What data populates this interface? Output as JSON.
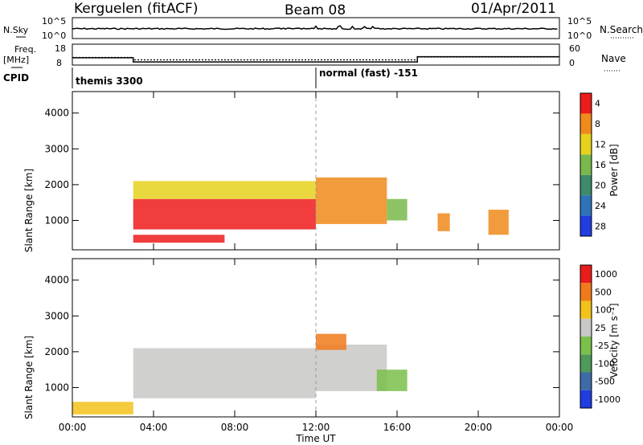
{
  "header": {
    "station": "Kerguelen (fitACF)",
    "beam": "Beam 08",
    "date": "01/Apr/2011"
  },
  "params": {
    "nsky_label": "N.Sky",
    "nsearch_label": "N.Search",
    "freq_label": "Freq.",
    "freq_unit": "[MHz]",
    "nave_label": "Nave",
    "cpid_label": "CPID",
    "nsky_ticks": [
      "10^5",
      "10^0"
    ],
    "nsearch_ticks": [
      "10^5",
      "10^0"
    ],
    "freq_ticks": [
      "18",
      "8"
    ],
    "nave_ticks": [
      "60",
      "0"
    ],
    "cpid_segments": [
      {
        "start_hr": 0,
        "text": "themis 3300"
      },
      {
        "start_hr": 12,
        "text": "normal (fast) -151"
      }
    ],
    "freq_series": {
      "x_hr": [
        0,
        3,
        3,
        17,
        17,
        24
      ],
      "y_mhz": [
        11.5,
        11.5,
        9.5,
        9.5,
        12,
        12
      ]
    },
    "nave_series": {
      "x_hr": [
        0,
        3,
        3,
        17,
        17,
        24
      ],
      "y": [
        22,
        22,
        15,
        15,
        23,
        23
      ]
    }
  },
  "chart_data": [
    {
      "type": "heatmap",
      "name": "power",
      "ylabel": "Slant Range [km]",
      "ylim": [
        180,
        4600
      ],
      "yticks": [
        "1000",
        "2000",
        "3000",
        "4000"
      ],
      "colorbar_label": "Power [dB]",
      "colorbar_ticks": [
        "4",
        "8",
        "12",
        "16",
        "20",
        "24",
        "28"
      ],
      "colorbar_colors": [
        "#1f3de0",
        "#2e72b8",
        "#3e8a6a",
        "#79b84a",
        "#e6d21c",
        "#f08a1a",
        "#ee1b1b"
      ],
      "bands": [
        {
          "x": [
            3.0,
            7.5
          ],
          "y": [
            380,
            600
          ],
          "level": 6
        },
        {
          "x": [
            3.0,
            12.0
          ],
          "y": [
            750,
            1600
          ],
          "level": 6
        },
        {
          "x": [
            3.0,
            12.0
          ],
          "y": [
            1600,
            2100
          ],
          "level": 4
        },
        {
          "x": [
            12.0,
            15.5
          ],
          "y": [
            900,
            2200
          ],
          "level": 5
        },
        {
          "x": [
            15.5,
            16.5
          ],
          "y": [
            1000,
            1600
          ],
          "level": 3
        },
        {
          "x": [
            18.0,
            18.6
          ],
          "y": [
            700,
            1200
          ],
          "level": 5
        },
        {
          "x": [
            20.5,
            21.5
          ],
          "y": [
            600,
            1300
          ],
          "level": 5
        }
      ]
    },
    {
      "type": "heatmap",
      "name": "velocity",
      "ylabel": "Slant Range [km]",
      "ylim": [
        180,
        4600
      ],
      "yticks": [
        "1000",
        "2000",
        "3000",
        "4000"
      ],
      "colorbar_label": "Velocity [m s⁻¹]",
      "colorbar_ticks": [
        "1000",
        "500",
        "100",
        "25",
        "-25",
        "-100",
        "-500",
        "-1000"
      ],
      "colorbar_colors": [
        "#1f3de0",
        "#3e6aa8",
        "#4e9a5a",
        "#7ac04a",
        "#c8c8c6",
        "#f2c21a",
        "#f07a1a",
        "#ea1b1b"
      ],
      "bands": [
        {
          "x": [
            3.0,
            12.0
          ],
          "y": [
            700,
            2100
          ],
          "level": 4
        },
        {
          "x": [
            12.0,
            15.5
          ],
          "y": [
            900,
            2200
          ],
          "level": 4
        },
        {
          "x": [
            12.0,
            13.5
          ],
          "y": [
            2050,
            2500
          ],
          "level": 6
        },
        {
          "x": [
            15.0,
            16.5
          ],
          "y": [
            900,
            1500
          ],
          "level": 3
        },
        {
          "x": [
            0.0,
            3.0
          ],
          "y": [
            250,
            600
          ],
          "level": 5
        }
      ]
    }
  ],
  "xaxis": {
    "label": "Time UT",
    "ticks": [
      "00:00",
      "04:00",
      "08:00",
      "12:00",
      "16:00",
      "20:00",
      "00:00"
    ],
    "xlim_hr": [
      0,
      24
    ]
  }
}
